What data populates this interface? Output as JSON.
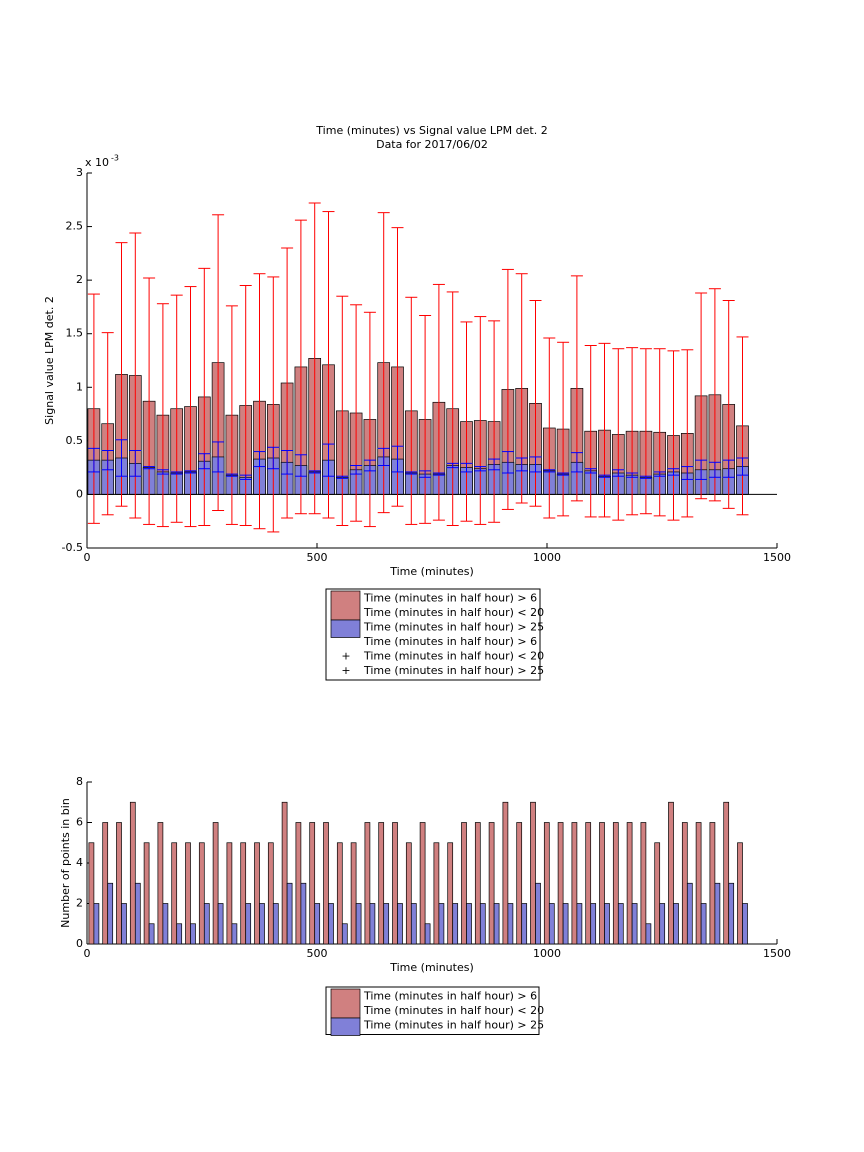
{
  "chart_data": [
    {
      "type": "bar",
      "title": [
        "Time (minutes) vs Signal value LPM det. 2",
        "Data for 2017/06/02"
      ],
      "x_label": "Time (minutes)",
      "y_label": "Signal value LPM det. 2",
      "y_scale_label": "x 10",
      "y_scale_exponent": "-3",
      "xlim": [
        0,
        1500
      ],
      "xticks": [
        0,
        500,
        1000,
        1500
      ],
      "ylim": [
        -0.5,
        3
      ],
      "yticks": [
        -0.5,
        0,
        0.5,
        1,
        1.5,
        2,
        2.5,
        3
      ],
      "legend": "below",
      "overlay": true,
      "error_bars": true,
      "x": [
        15,
        45,
        75,
        105,
        135,
        165,
        195,
        225,
        255,
        285,
        315,
        345,
        375,
        405,
        435,
        465,
        495,
        525,
        555,
        585,
        615,
        645,
        675,
        705,
        735,
        765,
        795,
        825,
        855,
        885,
        915,
        945,
        975,
        1005,
        1035,
        1065,
        1095,
        1125,
        1155,
        1185,
        1215,
        1245,
        1275,
        1305,
        1335,
        1365,
        1395,
        1425
      ],
      "series": [
        {
          "name": [
            "Time (minutes in half hour) > 6",
            "Time (minutes in half hour) < 20"
          ],
          "color": "#d08080",
          "error_color": "#ff0000",
          "values": [
            0.8,
            0.66,
            1.12,
            1.11,
            0.87,
            0.74,
            0.8,
            0.82,
            0.91,
            1.23,
            0.74,
            0.83,
            0.87,
            0.84,
            1.04,
            1.19,
            1.27,
            1.21,
            0.78,
            0.76,
            0.7,
            1.23,
            1.19,
            0.78,
            0.7,
            0.86,
            0.8,
            0.68,
            0.69,
            0.68,
            0.98,
            0.99,
            0.85,
            0.62,
            0.61,
            0.99,
            0.59,
            0.6,
            0.56,
            0.59,
            0.59,
            0.58,
            0.55,
            0.57,
            0.92,
            0.93,
            0.84,
            0.64
          ],
          "errors": [
            1.07,
            0.85,
            1.23,
            1.33,
            1.15,
            1.04,
            1.06,
            1.12,
            1.2,
            1.38,
            1.02,
            1.12,
            1.19,
            1.19,
            1.26,
            1.37,
            1.45,
            1.43,
            1.07,
            1.01,
            1.0,
            1.4,
            1.3,
            1.06,
            0.97,
            1.1,
            1.09,
            0.93,
            0.97,
            0.94,
            1.12,
            1.07,
            0.96,
            0.84,
            0.81,
            1.05,
            0.8,
            0.81,
            0.8,
            0.78,
            0.77,
            0.78,
            0.79,
            0.78,
            0.96,
            0.99,
            0.97,
            0.83
          ]
        },
        {
          "name": [
            "Time (minutes in half hour) > 25"
          ],
          "color": "#8080d8",
          "error_color": "#0000ff",
          "values": [
            0.32,
            0.32,
            0.34,
            0.29,
            0.25,
            0.21,
            0.2,
            0.21,
            0.31,
            0.35,
            0.18,
            0.16,
            0.33,
            0.34,
            0.3,
            0.27,
            0.21,
            0.32,
            0.16,
            0.23,
            0.27,
            0.35,
            0.33,
            0.2,
            0.19,
            0.19,
            0.27,
            0.25,
            0.24,
            0.28,
            0.3,
            0.28,
            0.28,
            0.22,
            0.19,
            0.3,
            0.22,
            0.17,
            0.2,
            0.18,
            0.16,
            0.19,
            0.21,
            0.2,
            0.23,
            0.23,
            0.24,
            0.26
          ],
          "errors": [
            0.11,
            0.09,
            0.17,
            0.12,
            0.01,
            0.02,
            0.01,
            0.01,
            0.07,
            0.14,
            0.01,
            0.02,
            0.07,
            0.1,
            0.11,
            0.1,
            0.01,
            0.15,
            0.01,
            0.04,
            0.05,
            0.08,
            0.12,
            0.01,
            0.03,
            0.01,
            0.02,
            0.04,
            0.02,
            0.05,
            0.1,
            0.06,
            0.07,
            0.01,
            0.01,
            0.09,
            0.02,
            0.01,
            0.03,
            0.02,
            0.01,
            0.02,
            0.03,
            0.06,
            0.09,
            0.07,
            0.08,
            0.08
          ]
        }
      ]
    },
    {
      "type": "bar",
      "x_label": "Time (minutes)",
      "y_label": "Number of points in bin",
      "xlim": [
        0,
        1500
      ],
      "xticks": [
        0,
        500,
        1000,
        1500
      ],
      "ylim": [
        0,
        8
      ],
      "yticks": [
        0,
        2,
        4,
        6,
        8
      ],
      "legend": "below",
      "overlay": false,
      "error_bars": false,
      "x": [
        15,
        45,
        75,
        105,
        135,
        165,
        195,
        225,
        255,
        285,
        315,
        345,
        375,
        405,
        435,
        465,
        495,
        525,
        555,
        585,
        615,
        645,
        675,
        705,
        735,
        765,
        795,
        825,
        855,
        885,
        915,
        945,
        975,
        1005,
        1035,
        1065,
        1095,
        1125,
        1155,
        1185,
        1215,
        1245,
        1275,
        1305,
        1335,
        1365,
        1395,
        1425
      ],
      "series": [
        {
          "name": [
            "Time (minutes in half hour) > 6",
            "Time (minutes in half hour) < 20"
          ],
          "color": "#d08080",
          "values": [
            5,
            6,
            6,
            7,
            5,
            6,
            5,
            5,
            5,
            6,
            5,
            5,
            5,
            5,
            7,
            6,
            6,
            6,
            5,
            5,
            6,
            6,
            6,
            5,
            6,
            5,
            5,
            6,
            6,
            6,
            7,
            6,
            7,
            6,
            6,
            6,
            6,
            6,
            6,
            6,
            6,
            5,
            7,
            6,
            6,
            6,
            7,
            5
          ]
        },
        {
          "name": [
            "Time (minutes in half hour) > 25"
          ],
          "color": "#8080d8",
          "values": [
            2,
            3,
            2,
            3,
            1,
            2,
            1,
            1,
            2,
            2,
            1,
            2,
            2,
            2,
            3,
            3,
            2,
            2,
            1,
            2,
            2,
            2,
            2,
            2,
            1,
            2,
            2,
            2,
            2,
            2,
            2,
            2,
            3,
            2,
            2,
            2,
            2,
            2,
            2,
            2,
            1,
            2,
            2,
            3,
            2,
            3,
            3,
            2
          ]
        }
      ]
    }
  ]
}
